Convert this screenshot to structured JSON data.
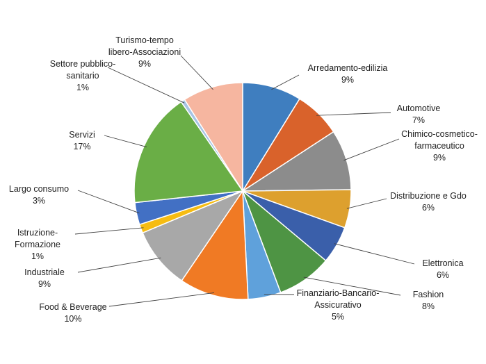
{
  "chart_data": {
    "type": "pie",
    "slices": [
      {
        "label": "Arredamento-edilizia",
        "lines": [
          "Arredamento-edilizia"
        ],
        "pct_label": "9%",
        "value": 8.8,
        "color": "#3F7EBF"
      },
      {
        "label": "Automotive",
        "lines": [
          "Automotive"
        ],
        "pct_label": "7%",
        "value": 7.0,
        "color": "#D9622B"
      },
      {
        "label": "Chimico-cosmetico-farmaceutico",
        "lines": [
          "Chimico-cosmetico-",
          "farmaceutico"
        ],
        "pct_label": "9%",
        "value": 9.0,
        "color": "#8C8C8C"
      },
      {
        "label": "Distribuzione e Gdo",
        "lines": [
          "Distribuzione e Gdo"
        ],
        "pct_label": "6%",
        "value": 5.7,
        "color": "#DDA02E"
      },
      {
        "label": "Elettronica",
        "lines": [
          "Elettronica"
        ],
        "pct_label": "6%",
        "value": 5.6,
        "color": "#3A5FAA"
      },
      {
        "label": "Fashion",
        "lines": [
          "Fashion"
        ],
        "pct_label": "8%",
        "value": 8.2,
        "color": "#4E9444"
      },
      {
        "label": "Finanziario-Bancario-Assicurativo",
        "lines": [
          "Finanziario-Bancario-",
          "Assicurativo"
        ],
        "pct_label": "5%",
        "value": 4.9,
        "color": "#5FA1DB"
      },
      {
        "label": "Food & Beverage",
        "lines": [
          "Food & Beverage"
        ],
        "pct_label": "10%",
        "value": 10.3,
        "color": "#F07A24"
      },
      {
        "label": "Industriale",
        "lines": [
          "Industriale"
        ],
        "pct_label": "9%",
        "value": 9.2,
        "color": "#A8A8A8"
      },
      {
        "label": "Istruzione-Formazione",
        "lines": [
          "Istruzione-",
          "Formazione"
        ],
        "pct_label": "1%",
        "value": 1.3,
        "color": "#F6BC12"
      },
      {
        "label": "Largo consumo",
        "lines": [
          "Largo consumo"
        ],
        "pct_label": "3%",
        "value": 3.3,
        "color": "#4270C4"
      },
      {
        "label": "Servizi",
        "lines": [
          "Servizi"
        ],
        "pct_label": "17%",
        "value": 17.1,
        "color": "#6AAE46"
      },
      {
        "label": "Settore pubblico-sanitario",
        "lines": [
          "Settore pubblico-",
          "sanitario"
        ],
        "pct_label": "1%",
        "value": 0.6,
        "color": "#A6C4E4"
      },
      {
        "label": "Turismo-tempo libero-Associazioni",
        "lines": [
          "Turismo-tempo",
          "libero-Associazioni"
        ],
        "pct_label": "9%",
        "value": 9.0,
        "color": "#F6B6A0"
      }
    ],
    "start_angle_deg": 0,
    "direction": "clockwise",
    "legend": "none"
  }
}
